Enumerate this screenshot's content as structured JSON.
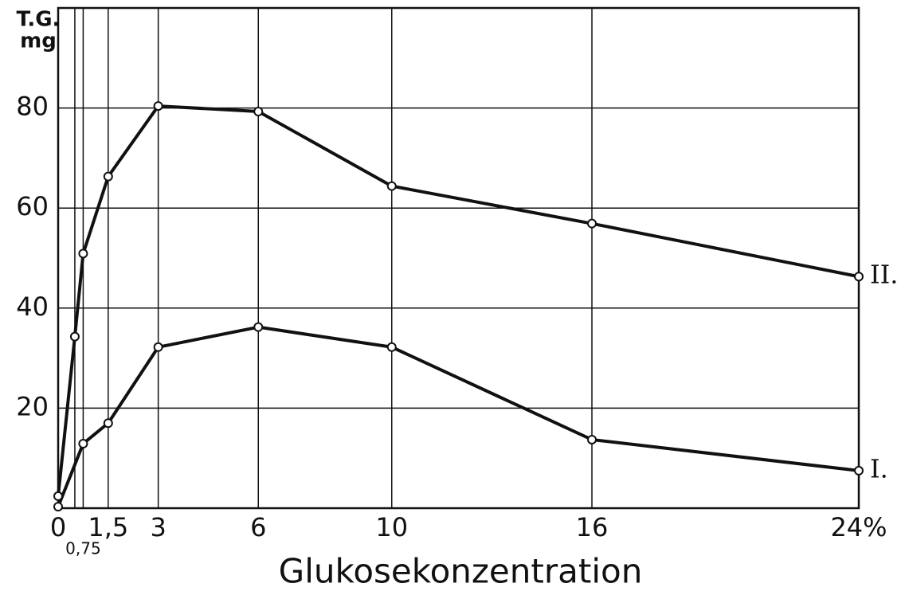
{
  "chart_data": {
    "type": "line",
    "ylabel": [
      "T.G.",
      "mg"
    ],
    "xlabel": "Glukosekonzentration",
    "xlim": [
      0,
      24
    ],
    "ylim": [
      0,
      100
    ],
    "xticks": [
      0,
      {
        "value": 0.75,
        "label": "0,75"
      },
      {
        "value": 1.5,
        "label": "1,5"
      },
      3,
      6,
      10,
      16,
      {
        "value": 24,
        "label": "24%"
      }
    ],
    "yticks": [
      20,
      40,
      60,
      80
    ],
    "grid": true,
    "color": "#111111",
    "series": [
      {
        "name": "I.",
        "color": "#111111",
        "x": [
          0,
          0.75,
          1.5,
          3,
          6,
          10,
          16,
          24
        ],
        "values": [
          0.3,
          12.9,
          17,
          32.2,
          36.2,
          32.2,
          13.7,
          7.5
        ]
      },
      {
        "name": "II.",
        "color": "#111111",
        "x": [
          0,
          0.5,
          0.75,
          1.5,
          3,
          6,
          10,
          16,
          24
        ],
        "values": [
          2.4,
          34.3,
          50.9,
          66.3,
          80.4,
          79.3,
          64.4,
          56.9,
          46.3
        ]
      }
    ]
  }
}
